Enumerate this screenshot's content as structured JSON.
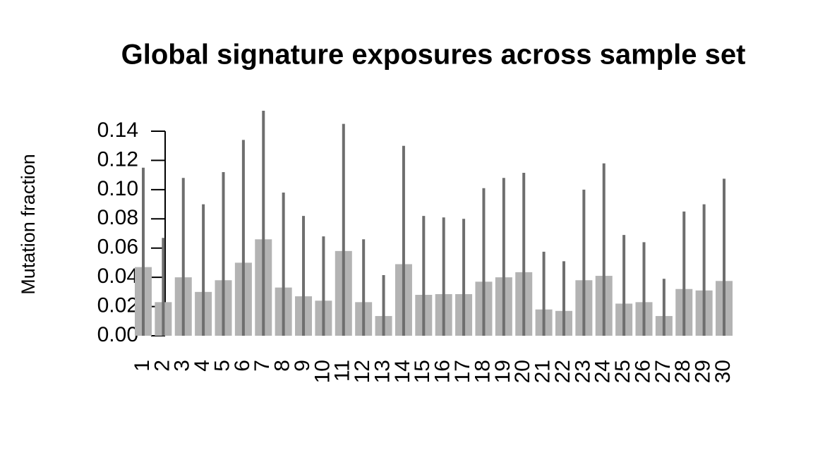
{
  "chart_data": {
    "type": "bar",
    "title": "Global signature exposures across sample set",
    "y_label": "Mutation fraction",
    "categories": [
      "1",
      "2",
      "3",
      "4",
      "5",
      "6",
      "7",
      "8",
      "9",
      "10",
      "11",
      "12",
      "13",
      "14",
      "15",
      "16",
      "17",
      "18",
      "19",
      "20",
      "21",
      "22",
      "23",
      "24",
      "25",
      "26",
      "27",
      "28",
      "29",
      "30"
    ],
    "values": [
      0.047,
      0.023,
      0.04,
      0.03,
      0.038,
      0.05,
      0.066,
      0.033,
      0.027,
      0.024,
      0.058,
      0.023,
      0.0135,
      0.049,
      0.028,
      0.0285,
      0.0285,
      0.037,
      0.04,
      0.0435,
      0.018,
      0.017,
      0.038,
      0.041,
      0.022,
      0.023,
      0.0135,
      0.032,
      0.031,
      0.0375
    ],
    "errors": [
      0.068,
      0.044,
      0.068,
      0.06,
      0.074,
      0.084,
      0.088,
      0.065,
      0.055,
      0.044,
      0.087,
      0.043,
      0.028,
      0.081,
      0.054,
      0.0525,
      0.0515,
      0.064,
      0.068,
      0.068,
      0.0395,
      0.034,
      0.062,
      0.077,
      0.047,
      0.041,
      0.0255,
      0.053,
      0.059,
      0.07
    ],
    "color": "#b3b3b3",
    "error_color": "#6e6e6e",
    "ylim": [
      0,
      0.14
    ],
    "yticks": [
      {
        "value": 0,
        "label": "0.00"
      },
      {
        "value": 0.02,
        "label": "0.02"
      },
      {
        "value": 0.04,
        "label": "0.04"
      },
      {
        "value": 0.06,
        "label": "0.06"
      },
      {
        "value": 0.08,
        "label": "0.08"
      },
      {
        "value": 0.1,
        "label": "0.10"
      },
      {
        "value": 0.12,
        "label": "0.12"
      },
      {
        "value": 0.14,
        "label": "0.14"
      }
    ]
  }
}
